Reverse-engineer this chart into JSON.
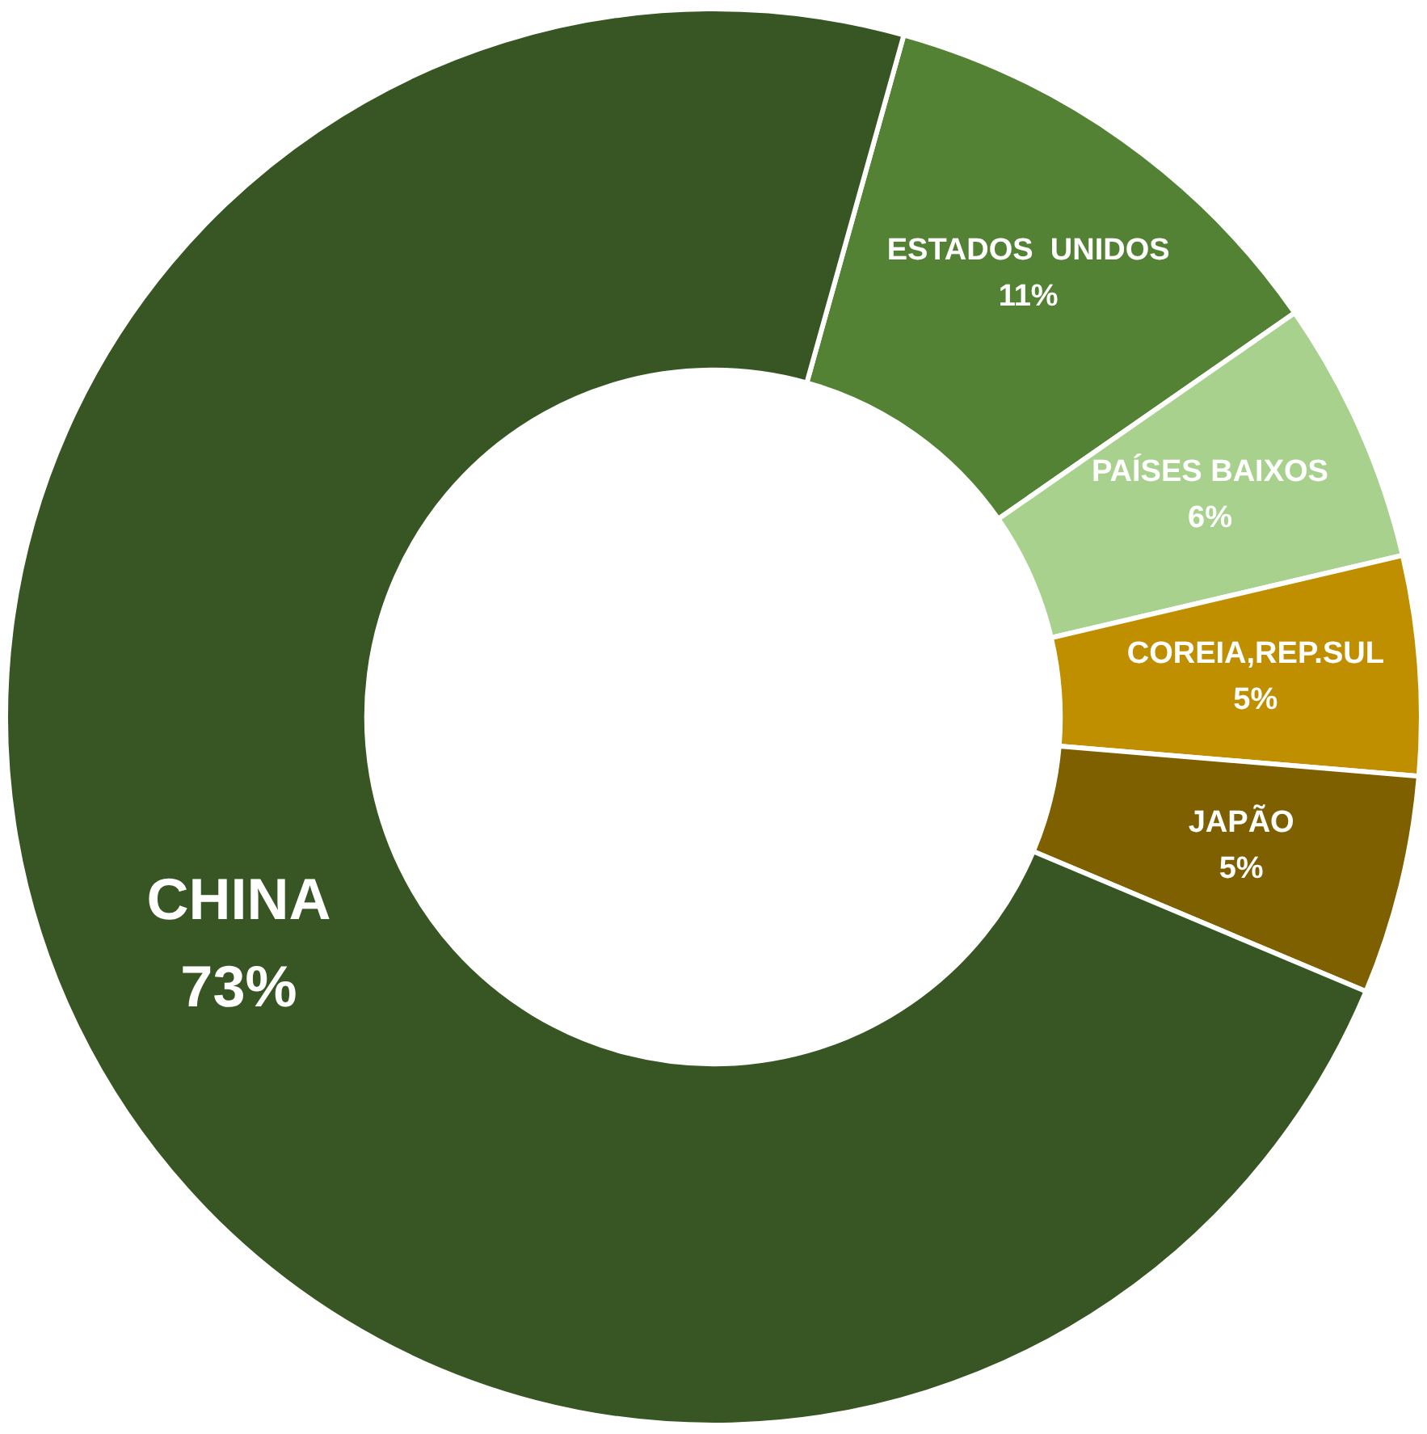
{
  "chart_data": {
    "type": "donut",
    "categories": [
      "ESTADOS  UNIDOS",
      "PAÍSES BAIXOS",
      "COREIA,REP.SUL",
      "JAPÃO",
      "CHINA"
    ],
    "values": [
      11,
      6,
      5,
      5,
      73
    ],
    "value_labels": [
      "11%",
      "6%",
      "5%",
      "5%",
      "73%"
    ],
    "colors": [
      "#548235",
      "#a9d18e",
      "#bf8f00",
      "#7f6000",
      "#375623"
    ],
    "legend": false
  }
}
